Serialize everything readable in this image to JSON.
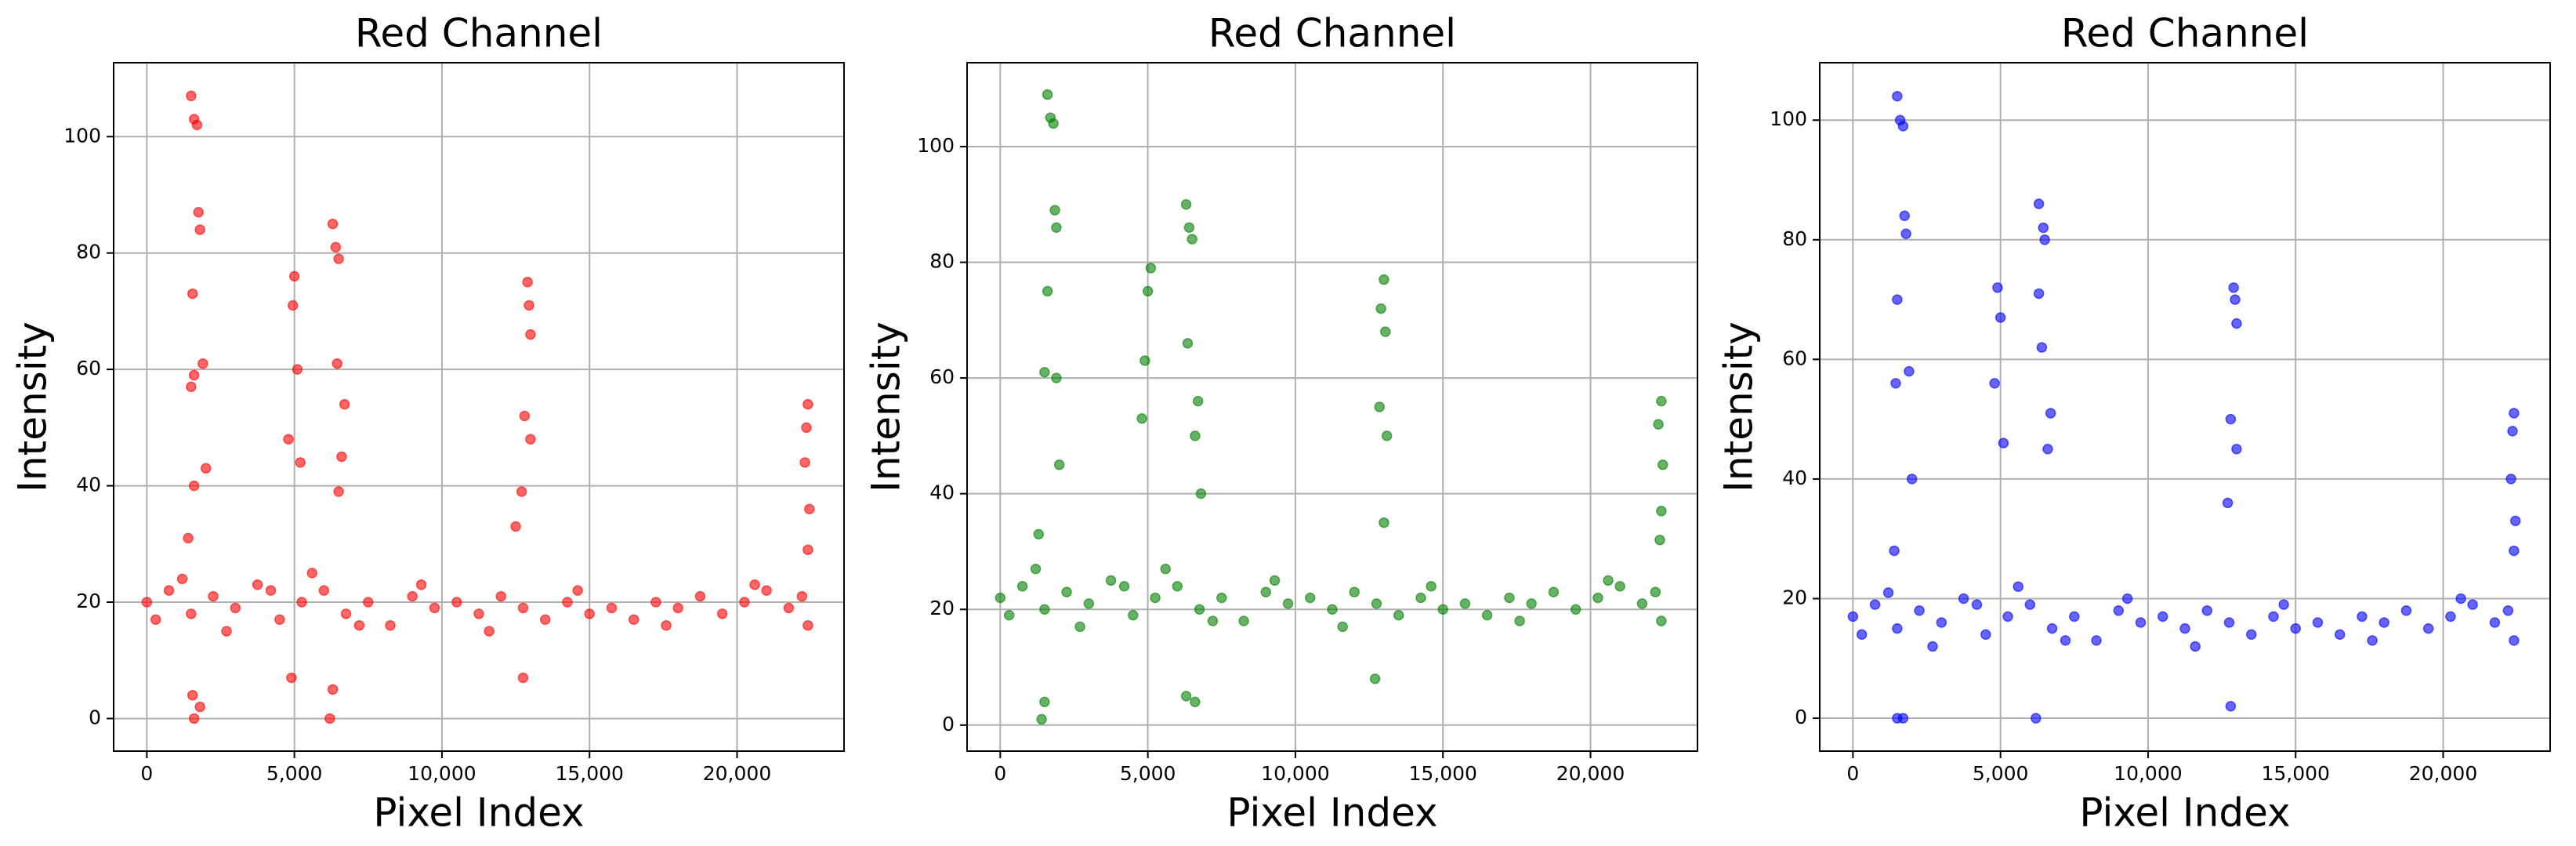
{
  "chart_data": [
    {
      "type": "scatter",
      "title": "Red Channel",
      "xlabel": "Pixel Index",
      "ylabel": "Intensity",
      "color": "red",
      "opacity": 0.6,
      "grid": true,
      "xlim": [
        -1125,
        23625
      ],
      "ylim": [
        -5.6,
        112.7
      ],
      "xticks": [
        0,
        {
          "value": 5000,
          "label": "5,000"
        },
        {
          "value": 10000,
          "label": "10,000"
        },
        {
          "value": 15000,
          "label": "15,000"
        },
        {
          "value": 20000,
          "label": "20,000"
        }
      ],
      "yticks": [
        0,
        20,
        40,
        60,
        80,
        100
      ],
      "x": [
        0,
        750,
        1500,
        2250,
        3000,
        3750,
        4500,
        5250,
        6000,
        6750,
        7500,
        8250,
        9000,
        9750,
        10500,
        11250,
        12000,
        12750,
        13500,
        14250,
        15000,
        15750,
        16500,
        17250,
        18000,
        18750,
        19500,
        20250,
        21000,
        21750,
        22400,
        300,
        1200,
        2700,
        4200,
        5600,
        7200,
        9300,
        11600,
        14600,
        17600,
        20600,
        22200,
        1500,
        1600,
        1700,
        1750,
        1800,
        1550,
        1900,
        1600,
        1500,
        2000,
        1600,
        1400,
        1550,
        1600,
        1800,
        4800,
        5000,
        4950,
        5100,
        5200,
        4900,
        6300,
        6400,
        6500,
        6450,
        6700,
        6600,
        6500,
        6200,
        6300,
        12900,
        12950,
        13000,
        12800,
        13000,
        12700,
        12500,
        12750,
        22400,
        22350,
        22300,
        22450,
        22400
      ],
      "values": [
        20,
        22,
        18,
        21,
        19,
        23,
        17,
        20,
        22,
        18,
        20,
        16,
        21,
        19,
        20,
        18,
        21,
        19,
        17,
        20,
        18,
        19,
        17,
        20,
        19,
        21,
        18,
        20,
        22,
        19,
        16,
        17,
        24,
        15,
        22,
        25,
        16,
        23,
        15,
        22,
        16,
        23,
        21,
        107,
        103,
        102,
        87,
        84,
        73,
        61,
        59,
        57,
        43,
        40,
        31,
        4,
        0,
        2,
        48,
        76,
        71,
        60,
        44,
        7,
        85,
        81,
        79,
        61,
        54,
        45,
        39,
        0,
        5,
        75,
        71,
        66,
        52,
        48,
        39,
        33,
        7,
        54,
        50,
        44,
        36,
        29
      ]
    },
    {
      "type": "scatter",
      "title": "Red Channel",
      "xlabel": "Pixel Index",
      "ylabel": "Intensity",
      "color": "green",
      "opacity": 0.6,
      "grid": true,
      "xlim": [
        -1125,
        23625
      ],
      "ylim": [
        -4.5,
        114.5
      ],
      "xticks": [
        0,
        {
          "value": 5000,
          "label": "5,000"
        },
        {
          "value": 10000,
          "label": "10,000"
        },
        {
          "value": 15000,
          "label": "15,000"
        },
        {
          "value": 20000,
          "label": "20,000"
        }
      ],
      "yticks": [
        0,
        20,
        40,
        60,
        80,
        100
      ],
      "x": [
        0,
        750,
        1500,
        2250,
        3000,
        3750,
        4500,
        5250,
        6000,
        6750,
        7500,
        8250,
        9000,
        9750,
        10500,
        11250,
        12000,
        12750,
        13500,
        14250,
        15000,
        15750,
        16500,
        17250,
        18000,
        18750,
        19500,
        20250,
        21000,
        21750,
        22400,
        300,
        1200,
        2700,
        4200,
        5600,
        7200,
        9300,
        11600,
        14600,
        17600,
        20600,
        22200,
        1600,
        1700,
        1800,
        1850,
        1900,
        1600,
        1500,
        1900,
        2000,
        1300,
        1400,
        1500,
        5100,
        5000,
        4900,
        4800,
        6300,
        6400,
        6500,
        6350,
        6700,
        6600,
        6800,
        6300,
        6600,
        13000,
        12900,
        13050,
        12850,
        13100,
        13000,
        12700,
        22400,
        22300,
        22450,
        22400,
        22350
      ],
      "values": [
        22,
        24,
        20,
        23,
        21,
        25,
        19,
        22,
        24,
        20,
        22,
        18,
        23,
        21,
        22,
        20,
        23,
        21,
        19,
        22,
        20,
        21,
        19,
        22,
        21,
        23,
        20,
        22,
        24,
        21,
        18,
        19,
        27,
        17,
        24,
        27,
        18,
        25,
        17,
        24,
        18,
        25,
        23,
        109,
        105,
        104,
        89,
        86,
        75,
        61,
        60,
        45,
        33,
        1,
        4,
        79,
        75,
        63,
        53,
        90,
        86,
        84,
        66,
        56,
        50,
        40,
        5,
        4,
        77,
        72,
        68,
        55,
        50,
        35,
        8,
        56,
        52,
        45,
        37,
        32
      ]
    },
    {
      "type": "scatter",
      "title": "Red Channel",
      "xlabel": "Pixel Index",
      "ylabel": "Intensity",
      "color": "blue",
      "opacity": 0.6,
      "grid": true,
      "xlim": [
        -1125,
        23625
      ],
      "ylim": [
        -5.5,
        109.6
      ],
      "xticks": [
        0,
        {
          "value": 5000,
          "label": "5,000"
        },
        {
          "value": 10000,
          "label": "10,000"
        },
        {
          "value": 15000,
          "label": "15,000"
        },
        {
          "value": 20000,
          "label": "20,000"
        }
      ],
      "yticks": [
        0,
        20,
        40,
        60,
        80,
        100
      ],
      "x": [
        0,
        750,
        1500,
        2250,
        3000,
        3750,
        4500,
        5250,
        6000,
        6750,
        7500,
        8250,
        9000,
        9750,
        10500,
        11250,
        12000,
        12750,
        13500,
        14250,
        15000,
        15750,
        16500,
        17250,
        18000,
        18750,
        19500,
        20250,
        21000,
        21750,
        22400,
        300,
        1200,
        2700,
        4200,
        5600,
        7200,
        9300,
        11600,
        14600,
        17600,
        20600,
        22200,
        1500,
        1600,
        1700,
        1750,
        1800,
        1500,
        1900,
        1450,
        2000,
        1400,
        1500,
        1700,
        4900,
        5000,
        4800,
        5100,
        6300,
        6450,
        6500,
        6300,
        6400,
        6700,
        6600,
        6200,
        12900,
        12950,
        13000,
        12800,
        13000,
        12700,
        12800,
        22400,
        22350,
        22300,
        22450,
        22400
      ],
      "values": [
        17,
        19,
        15,
        18,
        16,
        20,
        14,
        17,
        19,
        15,
        17,
        13,
        18,
        16,
        17,
        15,
        18,
        16,
        14,
        17,
        15,
        16,
        14,
        17,
        16,
        18,
        15,
        17,
        19,
        16,
        13,
        14,
        21,
        12,
        19,
        22,
        13,
        20,
        12,
        19,
        13,
        20,
        18,
        104,
        100,
        99,
        84,
        81,
        70,
        58,
        56,
        40,
        28,
        0,
        0,
        72,
        67,
        56,
        46,
        86,
        82,
        80,
        71,
        62,
        51,
        45,
        0,
        72,
        70,
        66,
        50,
        45,
        36,
        2,
        51,
        48,
        40,
        33,
        28
      ]
    }
  ]
}
